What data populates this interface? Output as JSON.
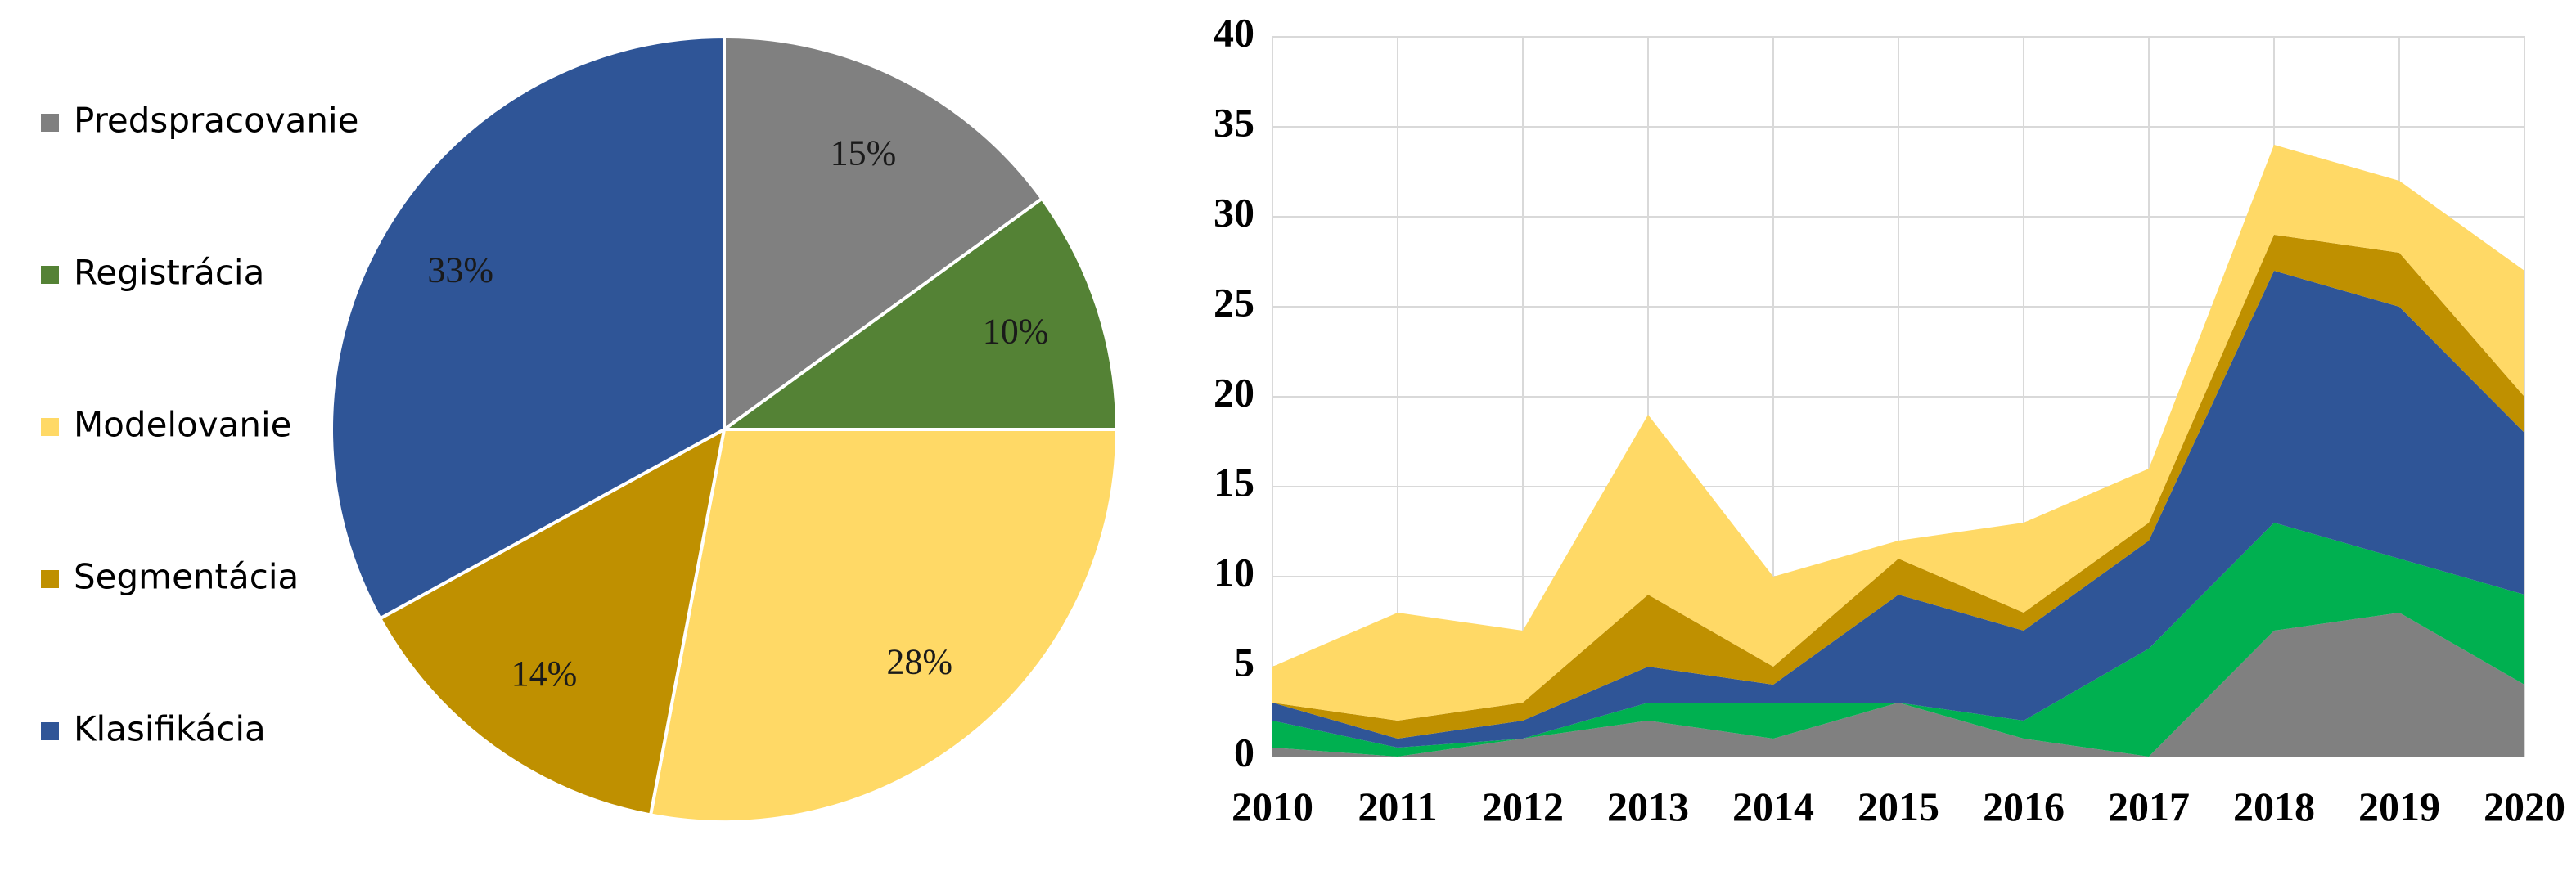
{
  "colors": {
    "Predspracovanie": "#808080",
    "Registrácia": "#548235",
    "Modelovanie": "#FFD966",
    "Segmentácia": "#BF9000",
    "Klasifikácia": "#2F5597",
    "area_green": "#00B050",
    "grid": "#D9D9D9"
  },
  "chart_data": [
    {
      "type": "pie",
      "legend_position": "left",
      "slices": [
        {
          "label": "Predspracovanie",
          "value": 15,
          "data_label": "15%"
        },
        {
          "label": "Registrácia",
          "value": 10,
          "data_label": "10%"
        },
        {
          "label": "Modelovanie",
          "value": 28,
          "data_label": "28%"
        },
        {
          "label": "Segmentácia",
          "value": 14,
          "data_label": "14%"
        },
        {
          "label": "Klasifikácia",
          "value": 33,
          "data_label": "33%"
        }
      ]
    },
    {
      "type": "area",
      "stacked": true,
      "grid": true,
      "x": [
        "2010",
        "2011",
        "2012",
        "2013",
        "2014",
        "2015",
        "2016",
        "2017",
        "2018",
        "2019",
        "2020"
      ],
      "ylim": [
        0,
        40
      ],
      "yticks": [
        "0",
        "5",
        "10",
        "15",
        "20",
        "25",
        "30",
        "35",
        "40"
      ],
      "series": [
        {
          "color": "#808080",
          "values": [
            0.5,
            0,
            1,
            2,
            1,
            3,
            1,
            0,
            7,
            8,
            4
          ]
        },
        {
          "color": "#00B050",
          "values": [
            1.5,
            0.5,
            0,
            1,
            2,
            0,
            1,
            6,
            6,
            3,
            5
          ]
        },
        {
          "color": "#2F5597",
          "values": [
            1,
            0.5,
            1,
            2,
            1,
            6,
            5,
            6,
            14,
            14,
            9
          ]
        },
        {
          "color": "#BF9000",
          "values": [
            0,
            1,
            1,
            4,
            1,
            2,
            1,
            1,
            2,
            3,
            2
          ]
        },
        {
          "color": "#FFD966",
          "values": [
            2,
            6,
            4,
            10,
            5,
            1,
            5,
            3,
            5,
            4,
            7
          ]
        }
      ]
    }
  ]
}
